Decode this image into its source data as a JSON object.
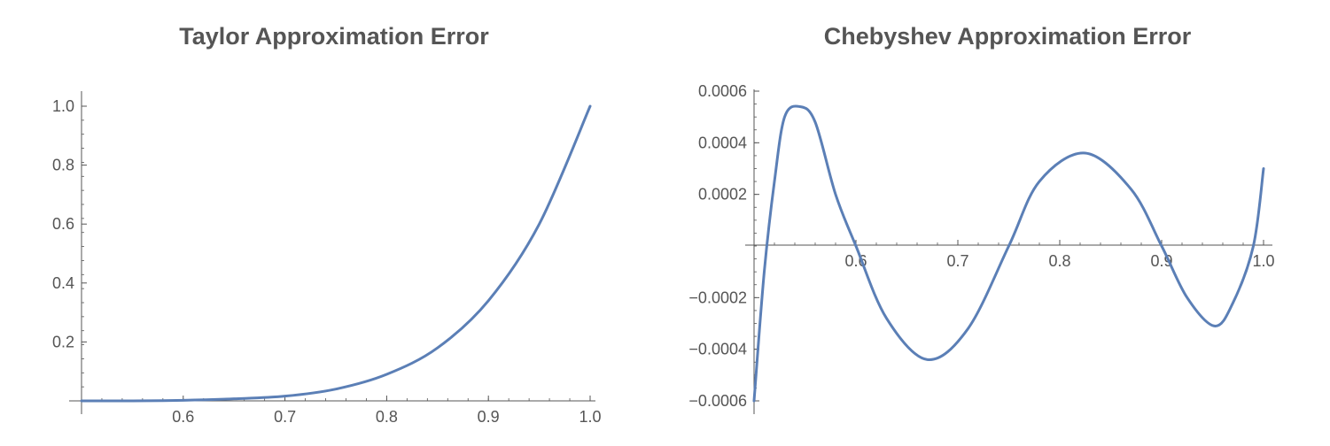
{
  "chart_data": [
    {
      "type": "line",
      "title": "Taylor Approximation Error",
      "xlabel": "",
      "ylabel": "",
      "xlim": [
        0.5,
        1.0
      ],
      "ylim": [
        0,
        1.05
      ],
      "x_ticks": [
        "0.6",
        "0.7",
        "0.8",
        "0.9",
        "1.0"
      ],
      "y_ticks": [
        "0.2",
        "0.4",
        "0.6",
        "0.8",
        "1.0"
      ],
      "series": [
        {
          "color": "#5b7fb6",
          "x": [
            0.5,
            0.55,
            0.6,
            0.65,
            0.7,
            0.75,
            0.8,
            0.85,
            0.9,
            0.95,
            1.0
          ],
          "y": [
            0.0,
            0.0,
            0.002,
            0.007,
            0.016,
            0.04,
            0.09,
            0.18,
            0.34,
            0.6,
            1.0
          ]
        }
      ]
    },
    {
      "type": "line",
      "title": "Chebyshev Approximation Error",
      "xlabel": "",
      "ylabel": "",
      "xlim": [
        0.5,
        1.0
      ],
      "ylim": [
        -0.0006,
        0.0006
      ],
      "x_ticks": [
        "0.6",
        "0.7",
        "0.8",
        "0.9",
        "1.0"
      ],
      "y_ticks": [
        "0.0006",
        "0.0004",
        "0.0002",
        "−0.0002",
        "−0.0004",
        "−0.0006"
      ],
      "series": [
        {
          "color": "#5b7fb6",
          "x": [
            0.5,
            0.51,
            0.52,
            0.53,
            0.545,
            0.56,
            0.58,
            0.6,
            0.63,
            0.67,
            0.71,
            0.75,
            0.78,
            0.825,
            0.87,
            0.9,
            0.925,
            0.952,
            0.97,
            0.99,
            1.0
          ],
          "y": [
            -0.0006,
            -0.0001,
            0.00025,
            0.0005,
            0.00054,
            0.00048,
            0.0002,
            0.0,
            -0.00028,
            -0.00044,
            -0.00032,
            0.0,
            0.00025,
            0.00036,
            0.00022,
            0.0,
            -0.0002,
            -0.00031,
            -0.00022,
            0.0,
            0.0003
          ]
        }
      ]
    }
  ]
}
